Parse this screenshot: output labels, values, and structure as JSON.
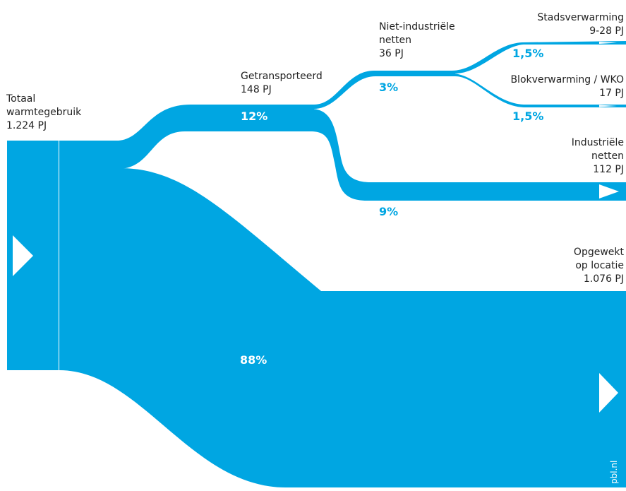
{
  "colors": {
    "flow": "#00a6e2",
    "label_text": "#222222",
    "pct_on_flow": "#ffffff",
    "pct_off_flow": "#00a6e2"
  },
  "source": {
    "title_line1": "Totaal",
    "title_line2": "warmtegebruik",
    "value": "1.224 PJ",
    "icon": "arrow-right-icon"
  },
  "transported": {
    "title": "Getransporteerd",
    "value": "148 PJ",
    "share": "12%"
  },
  "non_industrial": {
    "title_line1": "Niet-industriële",
    "title_line2": "netten",
    "value": "36 PJ",
    "share": "3%"
  },
  "district_heating": {
    "title": "Stadsverwarming",
    "value": "9-28 PJ",
    "share": "1,5%"
  },
  "block_heating": {
    "title": "Blokverwarming / WKO",
    "value": "17 PJ",
    "share": "1,5%"
  },
  "industrial": {
    "title_line1": "Industriële",
    "title_line2": "netten",
    "value": "112 PJ",
    "share": "9%"
  },
  "on_site": {
    "title_line1": "Opgewekt",
    "title_line2": "op locatie",
    "value": "1.076 PJ",
    "share": "88%",
    "icon": "arrow-right-icon"
  },
  "credit": "pbl.nl"
}
